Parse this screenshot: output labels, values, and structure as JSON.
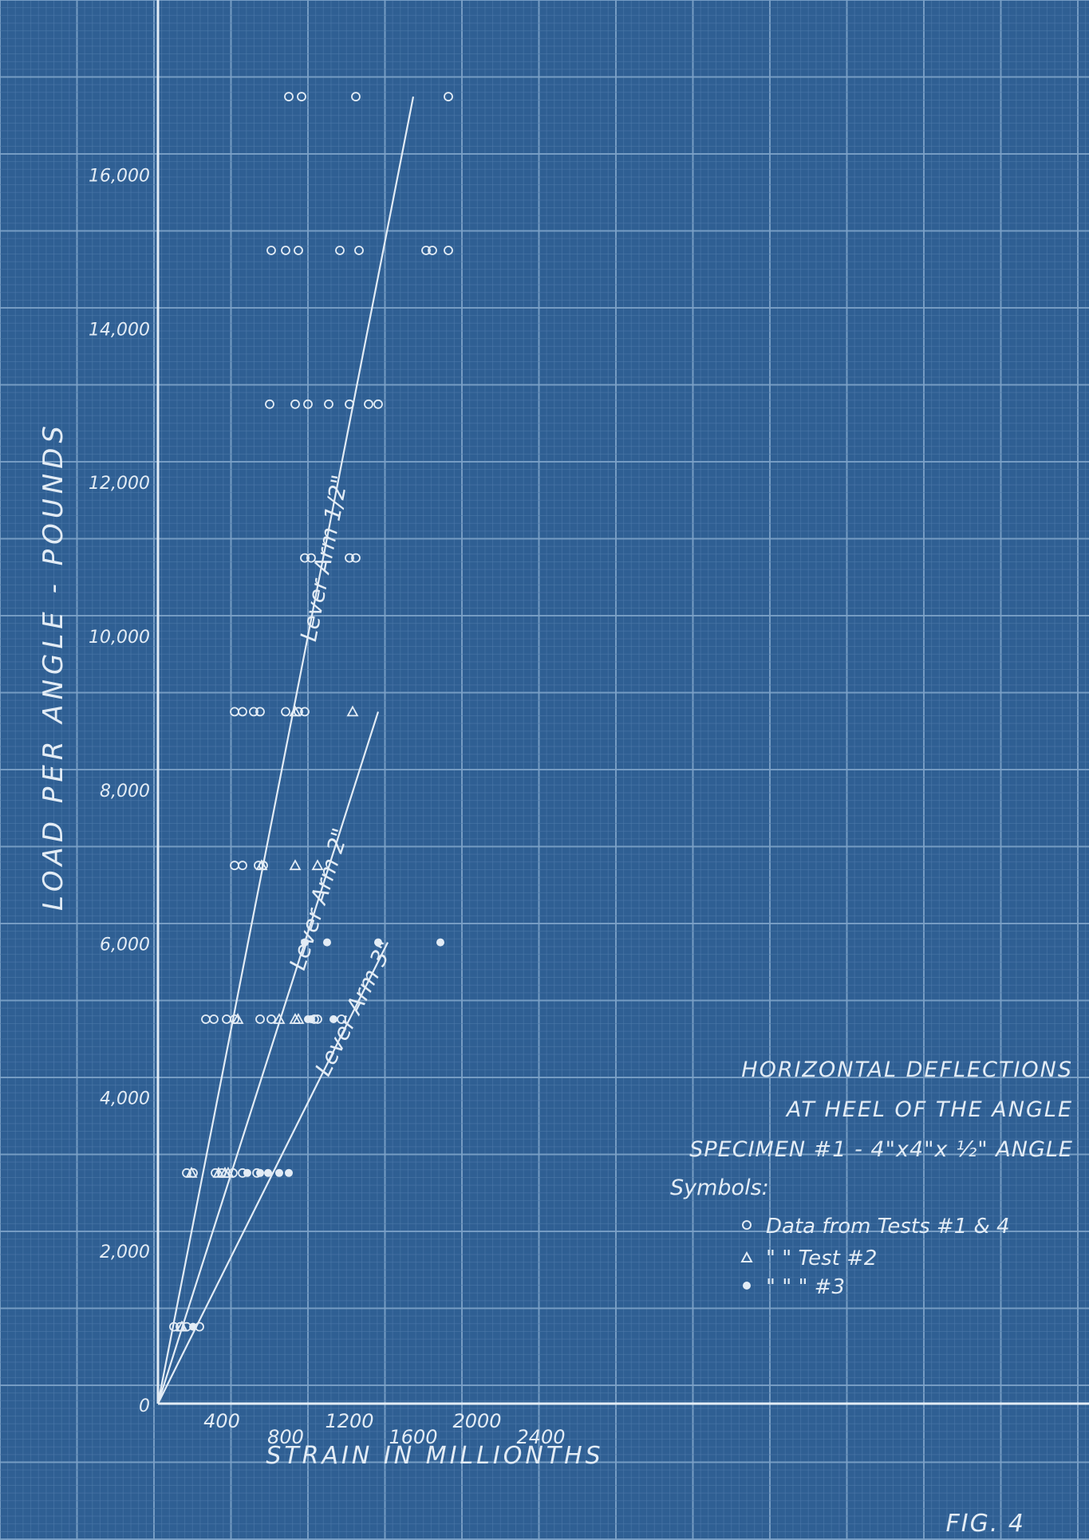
{
  "chart_data": {
    "type": "scatter",
    "title": "Horizontal Deflections at Heel of the Angle",
    "title_lines": [
      "HORIZONTAL DEFLECTIONS",
      "AT HEEL OF THE ANGLE",
      "SPECIMEN #1 - 4\"x4\"x ½\" ANGLE"
    ],
    "xlabel": "STRAIN IN MILLIONTHS",
    "ylabel": "LOAD PER ANGLE - POUNDS",
    "xlim": [
      0,
      2400
    ],
    "ylim": [
      0,
      16000
    ],
    "x_ticks": [
      "400",
      "800",
      "1200",
      "1600",
      "2000",
      "2400"
    ],
    "y_ticks": [
      "0",
      "2,000",
      "4,000",
      "6,000",
      "8,000",
      "10,000",
      "12,000",
      "14,000",
      "16,000"
    ],
    "grid": true,
    "legend": {
      "heading": "Symbols:",
      "entries": [
        {
          "marker": "circle",
          "text": "Data from Tests #1 & 4"
        },
        {
          "marker": "triangle",
          "text": "\"      \"   Test #2"
        },
        {
          "marker": "dot",
          "text": "\"      \"   \"   #3"
        }
      ]
    },
    "lines": [
      {
        "label": "Lever Arm 1/2\"",
        "from": [
          0,
          0
        ],
        "to": [
          1600,
          17000
        ]
      },
      {
        "label": "Lever Arm 2\"",
        "from": [
          0,
          0
        ],
        "to": [
          1380,
          9000
        ]
      },
      {
        "label": "Lever Arm 3\"",
        "from": [
          0,
          0
        ],
        "to": [
          1440,
          6000
        ]
      }
    ],
    "series": [
      {
        "name": "Data from Tests #1 & 4",
        "marker": "circle",
        "points": [
          [
            100,
            1000
          ],
          [
            140,
            1000
          ],
          [
            180,
            1000
          ],
          [
            260,
            1000
          ],
          [
            180,
            3000
          ],
          [
            220,
            3000
          ],
          [
            360,
            3000
          ],
          [
            400,
            3000
          ],
          [
            470,
            3000
          ],
          [
            530,
            3000
          ],
          [
            620,
            3000
          ],
          [
            300,
            5000
          ],
          [
            350,
            5000
          ],
          [
            430,
            5000
          ],
          [
            480,
            5000
          ],
          [
            640,
            5000
          ],
          [
            710,
            5000
          ],
          [
            980,
            5000
          ],
          [
            1000,
            5000
          ],
          [
            1150,
            5000
          ],
          [
            480,
            7000
          ],
          [
            530,
            7000
          ],
          [
            630,
            7000
          ],
          [
            660,
            7000
          ],
          [
            480,
            9000
          ],
          [
            530,
            9000
          ],
          [
            600,
            9000
          ],
          [
            640,
            9000
          ],
          [
            800,
            9000
          ],
          [
            880,
            9000
          ],
          [
            920,
            9000
          ],
          [
            920,
            11000
          ],
          [
            960,
            11000
          ],
          [
            1200,
            11000
          ],
          [
            1240,
            11000
          ],
          [
            700,
            13000
          ],
          [
            860,
            13000
          ],
          [
            940,
            13000
          ],
          [
            1070,
            13000
          ],
          [
            1200,
            13000
          ],
          [
            1320,
            13000
          ],
          [
            1380,
            13000
          ],
          [
            710,
            15000
          ],
          [
            800,
            15000
          ],
          [
            880,
            15000
          ],
          [
            1140,
            15000
          ],
          [
            1260,
            15000
          ],
          [
            1680,
            15000
          ],
          [
            1720,
            15000
          ],
          [
            1820,
            15000
          ],
          [
            820,
            17000
          ],
          [
            900,
            17000
          ],
          [
            1240,
            17000
          ],
          [
            1820,
            17000
          ]
        ]
      },
      {
        "name": "\"      \"   Test #2",
        "marker": "triangle",
        "points": [
          [
            150,
            1000
          ],
          [
            210,
            3000
          ],
          [
            380,
            3000
          ],
          [
            420,
            3000
          ],
          [
            440,
            3000
          ],
          [
            500,
            5000
          ],
          [
            760,
            5000
          ],
          [
            860,
            5000
          ],
          [
            880,
            5000
          ],
          [
            650,
            7000
          ],
          [
            860,
            7000
          ],
          [
            1000,
            7000
          ],
          [
            860,
            9000
          ],
          [
            1220,
            9000
          ]
        ]
      },
      {
        "name": "\"      \"   \"   #3",
        "marker": "dot",
        "points": [
          [
            220,
            1000
          ],
          [
            560,
            3000
          ],
          [
            640,
            3000
          ],
          [
            690,
            3000
          ],
          [
            760,
            3000
          ],
          [
            820,
            3000
          ],
          [
            940,
            5000
          ],
          [
            960,
            5000
          ],
          [
            1100,
            5000
          ],
          [
            920,
            6000
          ],
          [
            1060,
            6000
          ],
          [
            1380,
            6000
          ],
          [
            1770,
            6000
          ]
        ]
      }
    ]
  },
  "fig_label": "FIG. 4",
  "colors": {
    "background": "#2f5f93",
    "grid_minor": "#4f7bab",
    "grid_major": "#7ea3c9",
    "ink": "#e3ecf5"
  }
}
